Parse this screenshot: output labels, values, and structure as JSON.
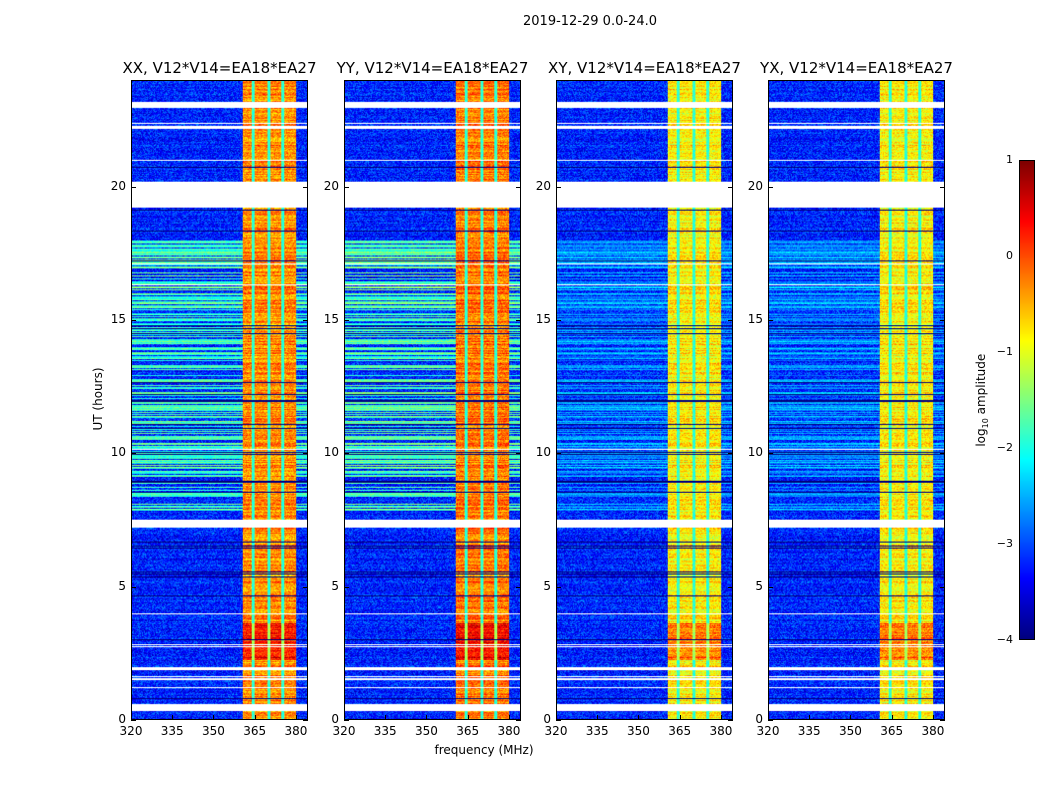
{
  "suptitle": "2019-12-29 0.0-24.0",
  "chart_data": {
    "type": "heatmap",
    "title": "2019-12-29 0.0-24.0",
    "xlabel": "frequency (MHz)",
    "ylabel": "UT (hours)",
    "xlim": [
      320,
      384.4
    ],
    "ylim": [
      0,
      24
    ],
    "xticks": [
      "320",
      "335",
      "350",
      "365",
      "380"
    ],
    "xtick_values": [
      320,
      335,
      350,
      365,
      380
    ],
    "yticks": [
      "0",
      "5",
      "10",
      "15",
      "20"
    ],
    "ytick_values": [
      0,
      5,
      10,
      15,
      20
    ],
    "colormap": "jet",
    "colorbar": {
      "label_main": "log",
      "label_sub": "10",
      "label_rest": " amplitude",
      "range": [
        -4,
        1
      ],
      "ticks": [
        "1",
        "0",
        "−1",
        "−2",
        "−3",
        "−4"
      ],
      "tick_values": [
        1,
        0,
        -1,
        -2,
        -3,
        -4
      ],
      "placement": "right"
    },
    "panels": [
      {
        "title": "XX, V12*V14=EA18*EA27",
        "rfi_rows_level": -1.8,
        "band_level": -0.3
      },
      {
        "title": "YY, V12*V14=EA18*EA27",
        "rfi_rows_level": -1.7,
        "band_level": -0.2
      },
      {
        "title": "XY, V12*V14=EA18*EA27",
        "rfi_rows_level": -2.6,
        "band_level": -0.8
      },
      {
        "title": "YX, V12*V14=EA18*EA27",
        "rfi_rows_level": -2.6,
        "band_level": -0.8
      }
    ],
    "background_level": -3.2,
    "bright_band_mhz": [
      360.7,
      380.4
    ],
    "band_gaps_mhz": [
      364.7,
      370.5,
      375.6
    ],
    "enhanced_interval_hours": [
      2.2,
      3.6
    ],
    "rfi_interval_hours": [
      7.8,
      18.0
    ],
    "flagged_intervals_hours": [
      [
        0.3,
        0.55
      ],
      [
        1.45,
        1.55
      ],
      [
        1.85,
        1.95
      ],
      [
        7.2,
        7.5
      ],
      [
        19.25,
        20.2
      ],
      [
        21.0,
        21.05
      ],
      [
        22.2,
        22.3
      ],
      [
        23.0,
        23.2
      ]
    ]
  }
}
